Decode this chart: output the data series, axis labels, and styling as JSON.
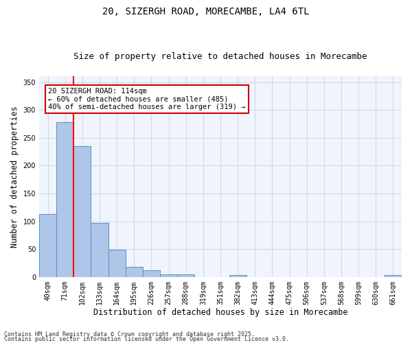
{
  "title_line1": "20, SIZERGH ROAD, MORECAMBE, LA4 6TL",
  "title_line2": "Size of property relative to detached houses in Morecambe",
  "xlabel": "Distribution of detached houses by size in Morecambe",
  "ylabel": "Number of detached properties",
  "categories": [
    "40sqm",
    "71sqm",
    "102sqm",
    "133sqm",
    "164sqm",
    "195sqm",
    "226sqm",
    "257sqm",
    "288sqm",
    "319sqm",
    "351sqm",
    "382sqm",
    "413sqm",
    "444sqm",
    "475sqm",
    "506sqm",
    "537sqm",
    "568sqm",
    "599sqm",
    "630sqm",
    "661sqm"
  ],
  "values": [
    113,
    278,
    235,
    97,
    49,
    18,
    12,
    5,
    5,
    0,
    0,
    4,
    0,
    0,
    0,
    0,
    0,
    0,
    0,
    0,
    3
  ],
  "bar_color": "#aec6e8",
  "bar_edge_color": "#5a8fc2",
  "red_line_index": 2,
  "annotation_text": "20 SIZERGH ROAD: 114sqm\n← 60% of detached houses are smaller (485)\n40% of semi-detached houses are larger (319) →",
  "annotation_box_color": "#ffffff",
  "annotation_box_edge_color": "#cc0000",
  "ylim": [
    0,
    360
  ],
  "yticks": [
    0,
    50,
    100,
    150,
    200,
    250,
    300,
    350
  ],
  "grid_color": "#d0d8e8",
  "background_color": "#f0f4fc",
  "footer_line1": "Contains HM Land Registry data © Crown copyright and database right 2025.",
  "footer_line2": "Contains public sector information licensed under the Open Government Licence v3.0.",
  "title_fontsize": 10,
  "subtitle_fontsize": 9,
  "tick_fontsize": 7,
  "label_fontsize": 8.5,
  "annotation_fontsize": 7.5,
  "footer_fontsize": 6
}
